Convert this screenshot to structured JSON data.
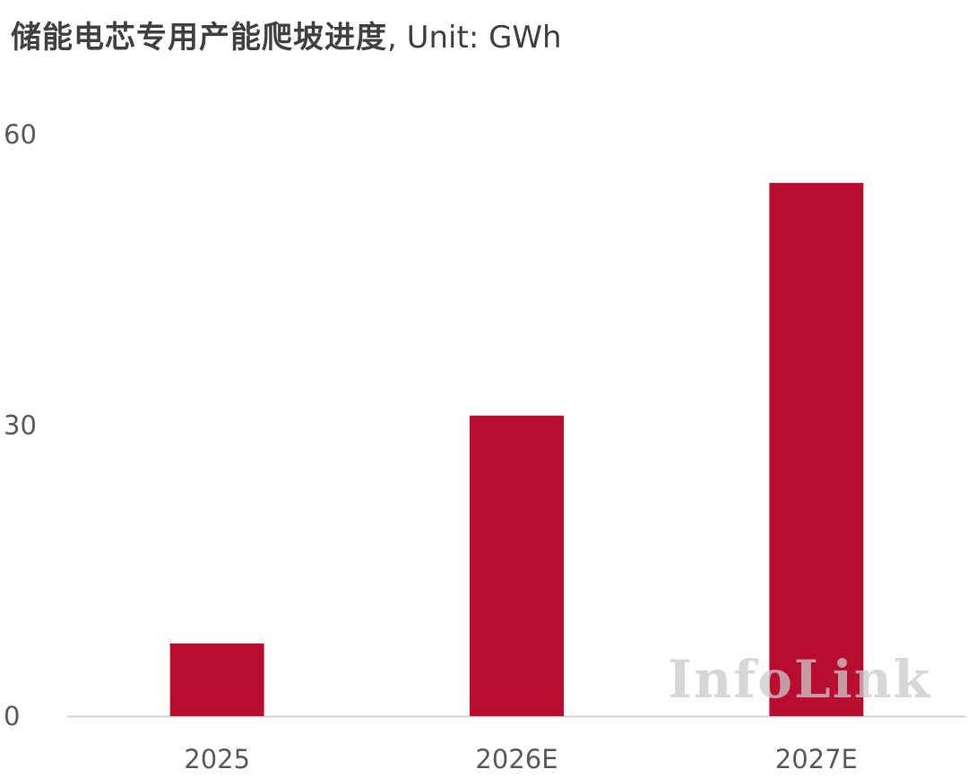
{
  "chart_data": {
    "type": "bar",
    "title": "储能电芯专用产能爬坡进度",
    "unit_suffix": ", Unit: GWh",
    "categories": [
      "2025",
      "2026E",
      "2027E"
    ],
    "values": [
      7.5,
      31,
      55
    ],
    "ylim": [
      0,
      60
    ],
    "yticks": [
      0,
      30,
      60
    ],
    "xlabel": "",
    "ylabel": "",
    "bar_color": "#b80d2f",
    "grid": false,
    "legend": "none",
    "watermark": "InfoLink"
  }
}
